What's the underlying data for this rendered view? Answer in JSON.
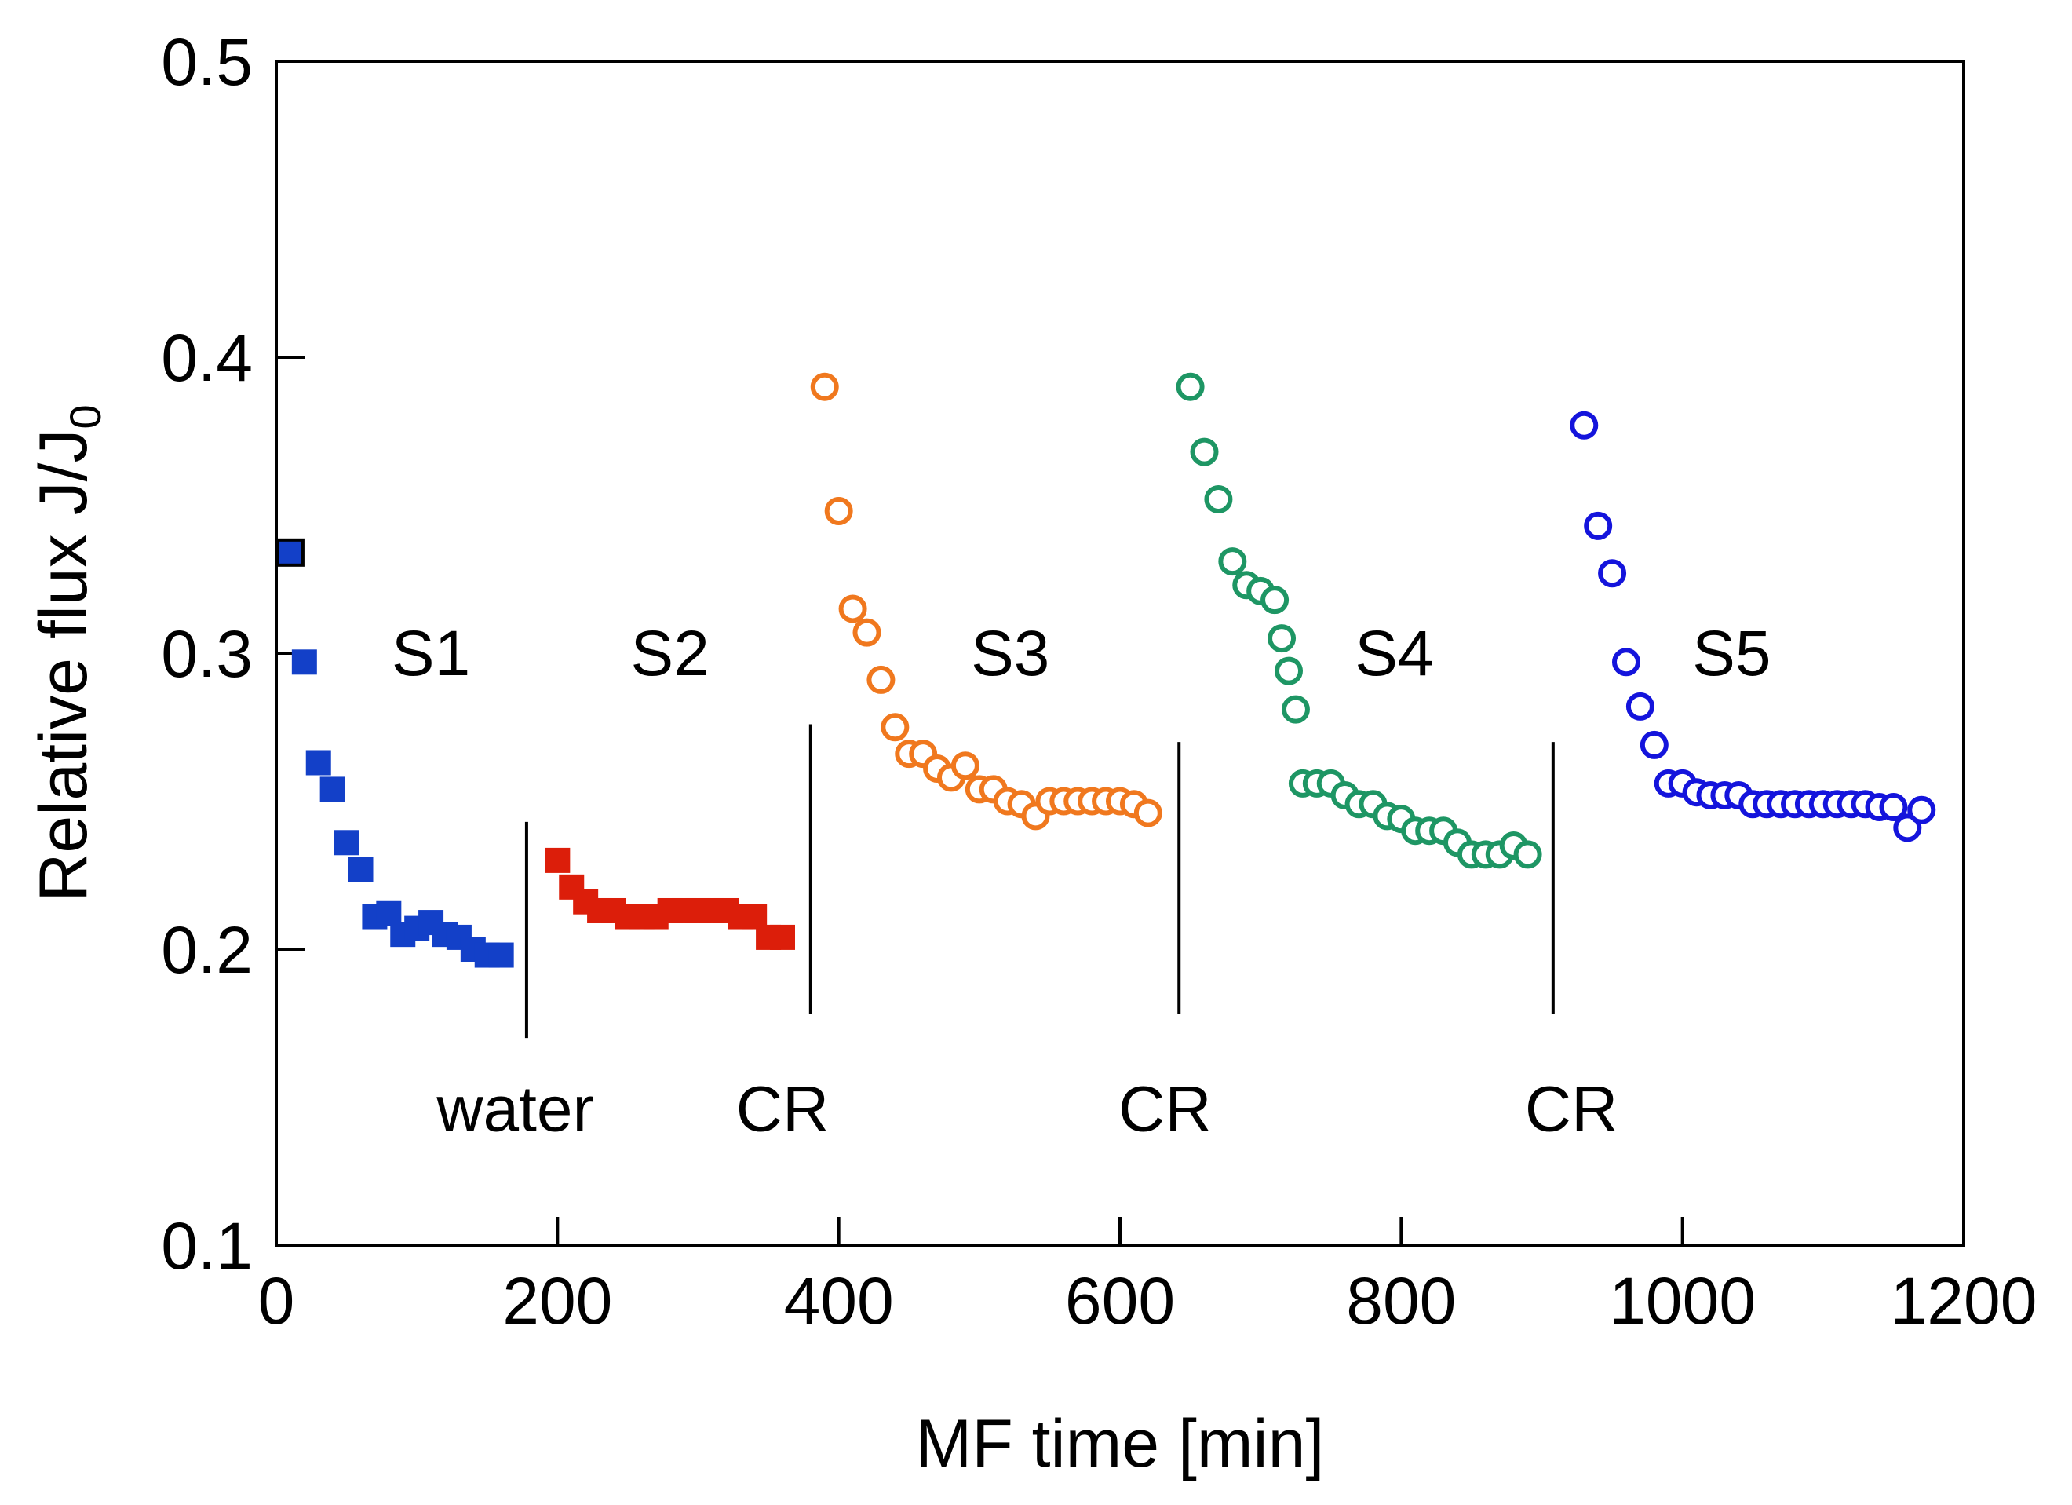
{
  "chart_data": {
    "type": "scatter",
    "title": "",
    "xlabel": "MF time [min]",
    "ylabel_main": "Relative flux J/J",
    "ylabel_subscript": "0",
    "xlim": [
      0,
      1200
    ],
    "ylim": [
      0.1,
      0.5
    ],
    "x_ticks": [
      0,
      200,
      400,
      600,
      800,
      1000,
      1200
    ],
    "x_tick_labels": [
      "0",
      "200",
      "400",
      "600",
      "800",
      "1000",
      "1200"
    ],
    "y_ticks": [
      0.1,
      0.2,
      0.3,
      0.4,
      0.5
    ],
    "y_tick_labels": [
      "0.1",
      "0.2",
      "0.3",
      "0.4",
      "0.5"
    ],
    "grid": false,
    "series": [
      {
        "name": "S1",
        "marker": "filled-square",
        "color": "#1340c8",
        "x": [
          10,
          20,
          30,
          40,
          50,
          60,
          70,
          80,
          90,
          100,
          110,
          120,
          130,
          140,
          150,
          160
        ],
        "y": [
          0.334,
          0.297,
          0.263,
          0.254,
          0.236,
          0.227,
          0.211,
          0.212,
          0.205,
          0.207,
          0.209,
          0.205,
          0.204,
          0.2,
          0.198,
          0.198
        ]
      },
      {
        "name": "S2",
        "marker": "filled-square",
        "color": "#dc1e0a",
        "x": [
          200,
          210,
          220,
          230,
          240,
          250,
          260,
          270,
          280,
          290,
          300,
          310,
          320,
          330,
          340,
          350,
          360
        ],
        "y": [
          0.23,
          0.221,
          0.216,
          0.213,
          0.213,
          0.211,
          0.211,
          0.211,
          0.213,
          0.213,
          0.213,
          0.213,
          0.213,
          0.211,
          0.211,
          0.204,
          0.204
        ]
      },
      {
        "name": "S3",
        "marker": "open-circle",
        "color": "#f0781e",
        "x": [
          390,
          400,
          410,
          420,
          430,
          440,
          450,
          460,
          470,
          480,
          490,
          500,
          510,
          520,
          530,
          540,
          550,
          560,
          570,
          580,
          590,
          600,
          610,
          620
        ],
        "y": [
          0.39,
          0.348,
          0.315,
          0.307,
          0.291,
          0.275,
          0.266,
          0.266,
          0.261,
          0.258,
          0.262,
          0.254,
          0.254,
          0.25,
          0.249,
          0.245,
          0.25,
          0.25,
          0.25,
          0.25,
          0.25,
          0.25,
          0.249,
          0.246
        ]
      },
      {
        "name": "S4",
        "marker": "open-circle",
        "color": "#1e9664",
        "x": [
          650,
          660,
          670,
          680,
          690,
          700,
          710,
          715,
          720,
          725,
          730,
          740,
          750,
          760,
          770,
          780,
          790,
          800,
          810,
          820,
          830,
          840,
          850,
          860,
          870,
          880,
          890
        ],
        "y": [
          0.39,
          0.368,
          0.352,
          0.331,
          0.323,
          0.321,
          0.318,
          0.305,
          0.294,
          0.281,
          0.256,
          0.256,
          0.256,
          0.252,
          0.249,
          0.249,
          0.245,
          0.244,
          0.24,
          0.24,
          0.24,
          0.236,
          0.232,
          0.232,
          0.232,
          0.235,
          0.232
        ]
      },
      {
        "name": "S5",
        "marker": "open-circle",
        "color": "#1414dc",
        "x": [
          930,
          940,
          950,
          960,
          970,
          980,
          990,
          1000,
          1010,
          1020,
          1030,
          1040,
          1050,
          1060,
          1070,
          1080,
          1090,
          1100,
          1110,
          1120,
          1130,
          1140,
          1150,
          1160,
          1170
        ],
        "y": [
          0.377,
          0.343,
          0.327,
          0.297,
          0.282,
          0.269,
          0.256,
          0.256,
          0.253,
          0.252,
          0.252,
          0.252,
          0.249,
          0.249,
          0.249,
          0.249,
          0.249,
          0.249,
          0.249,
          0.249,
          0.249,
          0.248,
          0.248,
          0.241,
          0.247
        ]
      }
    ],
    "segment_labels": [
      {
        "text": "S1",
        "x": 110,
        "y": 0.3
      },
      {
        "text": "S2",
        "x": 280,
        "y": 0.3
      },
      {
        "text": "S3",
        "x": 522,
        "y": 0.3
      },
      {
        "text": "S4",
        "x": 795,
        "y": 0.3
      },
      {
        "text": "S5",
        "x": 1035,
        "y": 0.3
      }
    ],
    "dividers": [
      {
        "x": 178,
        "y_top": 0.243,
        "y_bottom": 0.17,
        "label": "water",
        "label_x": 170
      },
      {
        "x": 380,
        "y_top": 0.276,
        "y_bottom": 0.178,
        "label": "CR",
        "label_x": 360
      },
      {
        "x": 642,
        "y_top": 0.27,
        "y_bottom": 0.178,
        "label": "CR",
        "label_x": 632
      },
      {
        "x": 908,
        "y_top": 0.27,
        "y_bottom": 0.178,
        "label": "CR",
        "label_x": 921
      }
    ],
    "divider_label_y": 0.146
  }
}
